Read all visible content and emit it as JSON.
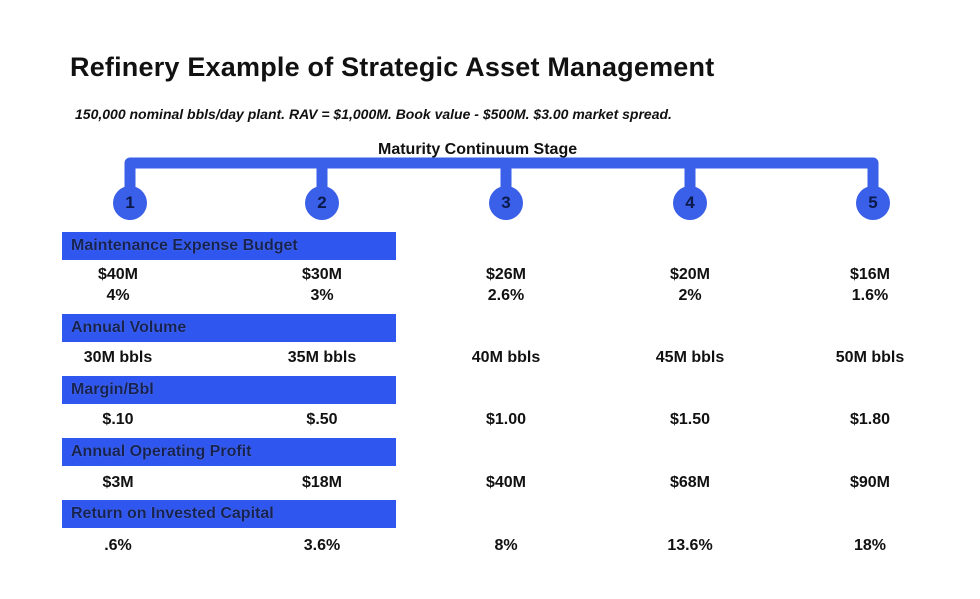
{
  "title": "Refinery Example of Strategic Asset Management",
  "subtitle": "150,000 nominal bbls/day plant.  RAV = $1,000M.  Book value - $500M.  $3.00 market spread.",
  "stage_heading": "Maturity Continuum Stage",
  "stages": [
    "1",
    "2",
    "3",
    "4",
    "5"
  ],
  "colors": {
    "bar": "#2f56ee",
    "circle": "#3a5fe8",
    "connector": "#3a5fe8"
  },
  "rows": [
    {
      "label": "Maintenance Expense Budget",
      "values": [
        "$40M",
        "$30M",
        "$26M",
        "$20M",
        "$16M"
      ],
      "sub_values": [
        "4%",
        "3%",
        "2.6%",
        "2%",
        "1.6%"
      ]
    },
    {
      "label": "Annual Volume",
      "values": [
        "30M bbls",
        "35M bbls",
        "40M bbls",
        "45M bbls",
        "50M bbls"
      ]
    },
    {
      "label": "Margin/Bbl",
      "values": [
        "$.10",
        "$.50",
        "$1.00",
        "$1.50",
        "$1.80"
      ]
    },
    {
      "label": "Annual Operating Profit",
      "values": [
        "$3M",
        "$18M",
        "$40M",
        "$68M",
        "$90M"
      ]
    },
    {
      "label": "Return on Invested Capital",
      "values": [
        ".6%",
        "3.6%",
        "8%",
        "13.6%",
        "18%"
      ]
    }
  ]
}
